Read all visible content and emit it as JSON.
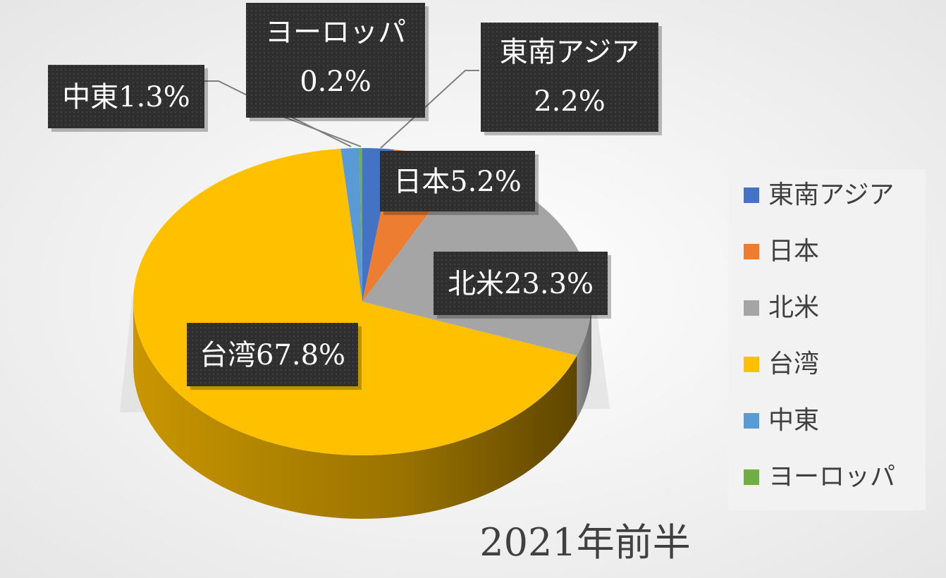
{
  "chart_data": {
    "type": "pie",
    "title": "2021年前半",
    "legend_position": "right",
    "categories": [
      "東南アジア",
      "日本",
      "北米",
      "台湾",
      "中東",
      "ヨーロッパ"
    ],
    "values": [
      2.2,
      5.2,
      23.3,
      67.8,
      1.3,
      0.2
    ],
    "colors": [
      "#4472C4",
      "#ED7D31",
      "#A5A5A5",
      "#FFC000",
      "#5B9BD5",
      "#70AD47"
    ],
    "data_labels": [
      {
        "name": "東南アジア",
        "value": "2.2%"
      },
      {
        "name": "日本",
        "value": "5.2%"
      },
      {
        "name": "北米",
        "value": "23.3%"
      },
      {
        "name": "台湾",
        "value": "67.8%"
      },
      {
        "name": "中東",
        "value": "1.3%"
      },
      {
        "name": "ヨーロッパ",
        "value": "0.2%"
      }
    ]
  }
}
